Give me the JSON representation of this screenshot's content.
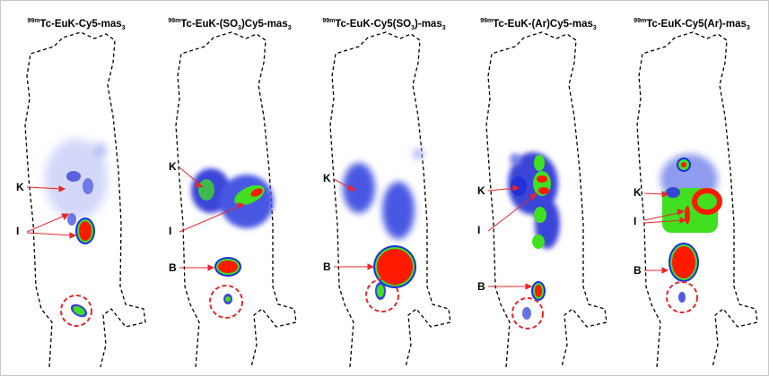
{
  "panels": [
    {
      "iso": "99m",
      "base": "Tc-EuK-Cy5-mas",
      "sub": "3",
      "labels": [
        "K",
        "I"
      ]
    },
    {
      "iso": "99m",
      "base": "Tc-EuK-(SO",
      "sub1": "3",
      "mid": ")Cy5-mas",
      "sub": "3",
      "labels": [
        "K",
        "I",
        "B"
      ]
    },
    {
      "iso": "99m",
      "base": "Tc-EuK-Cy5(SO",
      "sub1": "3",
      "mid": ")-mas",
      "sub": "3",
      "labels": [
        "K",
        "B"
      ]
    },
    {
      "iso": "99m",
      "base": "Tc-EuK-(Ar)Cy5-mas",
      "sub": "3",
      "labels": [
        "K",
        "I",
        "B"
      ]
    },
    {
      "iso": "99m",
      "base": "Tc-EuK-Cy5(Ar)-mas",
      "sub": "3",
      "labels": [
        "K",
        "I",
        "B"
      ]
    }
  ],
  "colors": {
    "outline": "#000000",
    "arrow": "#e8262b",
    "circle": "#e8262b",
    "hot": "#ff1a00",
    "warm": "#40e020",
    "cool": "#1a2ee8",
    "faint": "#8f9ef0"
  }
}
